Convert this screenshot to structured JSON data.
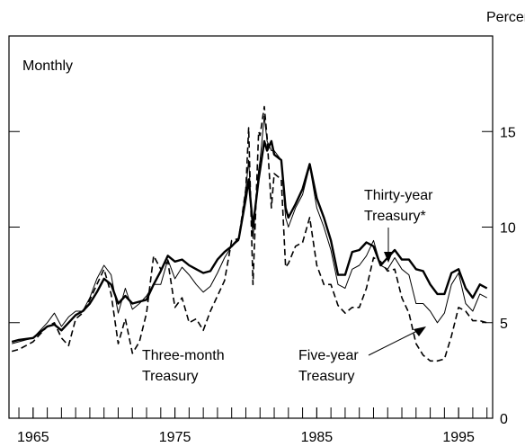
{
  "chart_data": {
    "type": "line",
    "y_axis_label": "Percent",
    "annotation": "Monthly",
    "series_labels": [
      {
        "lines": [
          "Thirty-year",
          "Treasury*"
        ]
      },
      {
        "lines": [
          "Five-year",
          "Treasury"
        ]
      },
      {
        "lines": [
          "Three-month",
          "Treasury"
        ]
      }
    ],
    "x": [
      1963.5,
      1964,
      1965,
      1966,
      1966.5,
      1967,
      1967.5,
      1968,
      1968.5,
      1969,
      1969.5,
      1970,
      1970.5,
      1971,
      1971.5,
      1972,
      1972.5,
      1973,
      1973.5,
      1974,
      1974.5,
      1975,
      1975.5,
      1976,
      1976.5,
      1977,
      1977.5,
      1978,
      1978.5,
      1979,
      1979.5,
      1980,
      1980.2,
      1980.5,
      1980.9,
      1981,
      1981.3,
      1981.5,
      1981.8,
      1982,
      1982.5,
      1982.8,
      1983,
      1983.5,
      1984,
      1984.5,
      1985,
      1985.5,
      1986,
      1986.5,
      1987,
      1987.5,
      1988,
      1988.5,
      1989,
      1989.5,
      1990,
      1990.5,
      1991,
      1991.5,
      1992,
      1992.5,
      1993,
      1993.5,
      1994,
      1994.5,
      1995,
      1995.5,
      1996,
      1996.5,
      1997
    ],
    "series": [
      {
        "color": "#000000",
        "line_width": 2.4,
        "dashed": false,
        "values": [
          4.0,
          4.1,
          4.2,
          4.8,
          4.9,
          4.6,
          5.0,
          5.4,
          5.6,
          6.0,
          6.6,
          7.3,
          7.0,
          6.0,
          6.4,
          6.0,
          6.1,
          6.2,
          7.0,
          7.7,
          8.5,
          8.2,
          8.3,
          8.0,
          7.8,
          7.6,
          7.7,
          8.3,
          8.7,
          9.0,
          9.4,
          11.5,
          12.5,
          10.0,
          12.5,
          13.0,
          14.5,
          14.0,
          14.5,
          13.8,
          13.5,
          11.0,
          10.5,
          11.2,
          12.0,
          13.3,
          11.5,
          10.5,
          9.3,
          7.5,
          7.5,
          8.7,
          8.8,
          9.2,
          9.0,
          8.0,
          8.4,
          8.8,
          8.3,
          8.3,
          7.8,
          7.7,
          7.0,
          6.5,
          6.5,
          7.6,
          7.8,
          6.8,
          6.3,
          7.0,
          6.8
        ]
      },
      {
        "color": "#000000",
        "line_width": 1,
        "dashed": false,
        "values": [
          3.9,
          4.0,
          4.2,
          5.0,
          5.5,
          4.8,
          5.3,
          5.6,
          5.6,
          6.3,
          7.3,
          8.0,
          7.5,
          5.5,
          6.8,
          5.7,
          6.0,
          6.4,
          7.0,
          7.0,
          8.3,
          7.3,
          7.9,
          7.5,
          7.0,
          6.6,
          6.9,
          7.6,
          8.4,
          9.0,
          9.3,
          12.0,
          13.5,
          9.4,
          13.0,
          13.5,
          15.8,
          14.5,
          14.0,
          14.0,
          13.5,
          10.5,
          10.0,
          11.0,
          11.7,
          13.2,
          11.0,
          10.0,
          8.8,
          7.0,
          6.8,
          7.8,
          8.0,
          8.5,
          9.3,
          8.0,
          7.8,
          8.4,
          7.8,
          7.5,
          6.0,
          6.0,
          5.6,
          5.0,
          5.5,
          7.0,
          7.6,
          6.0,
          5.6,
          6.5,
          6.3
        ]
      },
      {
        "color": "#000000",
        "line_width": 1.6,
        "dashed": true,
        "values": [
          3.5,
          3.6,
          4.0,
          4.8,
          5.0,
          4.2,
          3.8,
          5.2,
          5.5,
          6.2,
          7.0,
          7.8,
          6.5,
          3.9,
          5.2,
          3.4,
          4.0,
          5.5,
          8.5,
          7.8,
          8.2,
          5.8,
          6.3,
          5.0,
          5.2,
          4.6,
          5.6,
          6.4,
          7.2,
          9.3,
          9.4,
          12.0,
          15.2,
          7.0,
          15.0,
          14.8,
          16.3,
          14.7,
          11.0,
          12.8,
          12.5,
          7.9,
          8.1,
          9.0,
          9.2,
          10.5,
          8.0,
          7.0,
          7.0,
          5.9,
          5.5,
          5.8,
          5.8,
          6.8,
          8.4,
          8.2,
          7.7,
          7.8,
          6.3,
          5.5,
          3.9,
          3.3,
          3.0,
          3.0,
          3.1,
          4.3,
          5.8,
          5.6,
          5.1,
          5.1,
          5.0
        ]
      }
    ],
    "xlim": [
      1963.3,
      1997.4
    ],
    "xticks": [
      1965,
      1975,
      1985,
      1995
    ],
    "x_minor_ticks": [
      1964,
      1965,
      1966,
      1967,
      1968,
      1969,
      1970,
      1971,
      1972,
      1973,
      1974,
      1975,
      1976,
      1977,
      1978,
      1979,
      1980,
      1981,
      1982,
      1983,
      1984,
      1985,
      1986,
      1987,
      1988,
      1989,
      1990,
      1991,
      1992,
      1993,
      1994,
      1995,
      1996,
      1997
    ],
    "ylim": [
      0,
      20
    ],
    "yticks": [
      0,
      5,
      10,
      15
    ]
  }
}
